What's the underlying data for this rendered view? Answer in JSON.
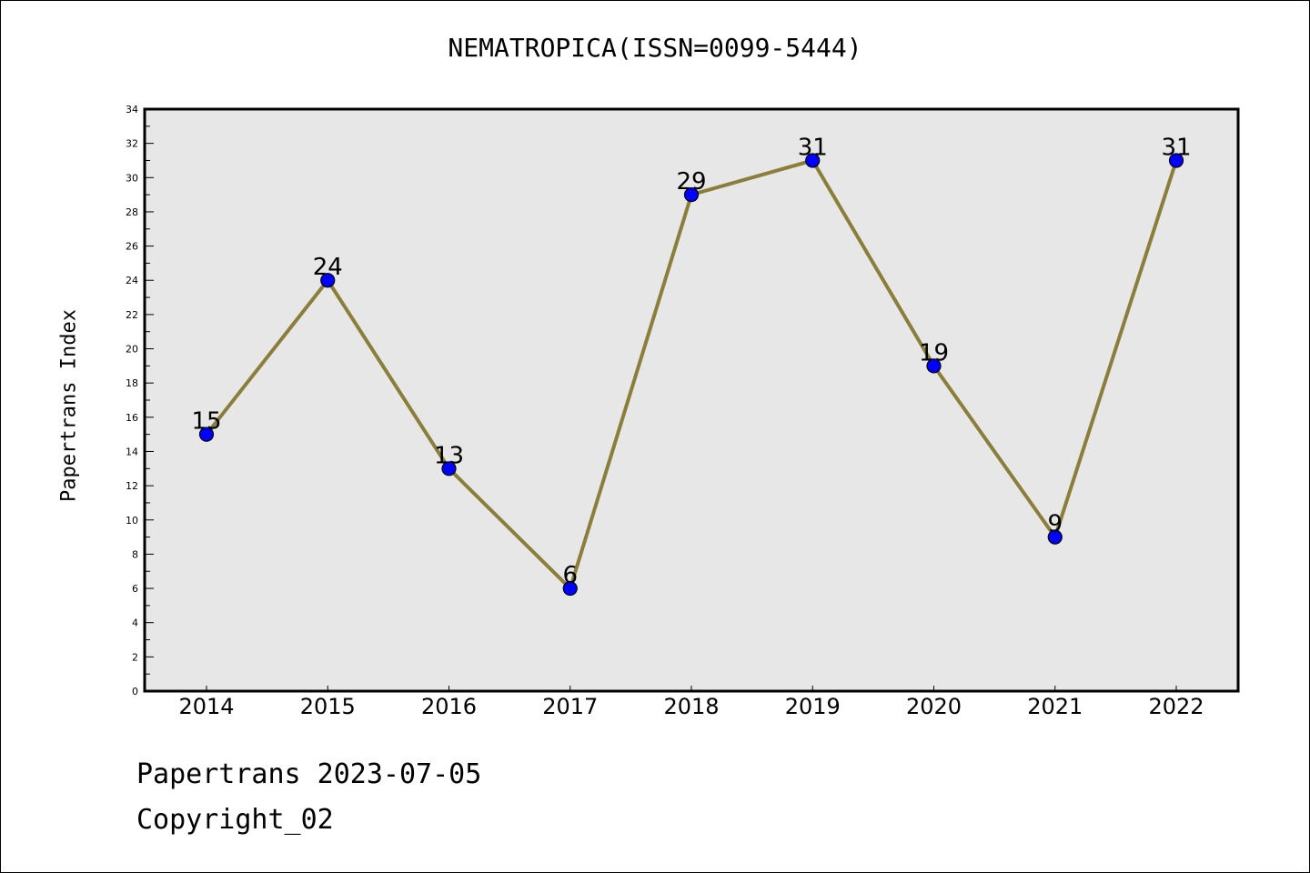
{
  "chart_data": {
    "type": "line",
    "title": "NEMATROPICA(ISSN=0099-5444)",
    "xlabel": "",
    "ylabel": "Papertrans Index",
    "categories": [
      "2014",
      "2015",
      "2016",
      "2017",
      "2018",
      "2019",
      "2020",
      "2021",
      "2022"
    ],
    "series": [
      {
        "values": [
          15,
          24,
          13,
          6,
          29,
          31,
          19,
          9,
          31
        ]
      }
    ],
    "ylim": [
      0,
      34
    ],
    "yticks": [
      0,
      2,
      4,
      6,
      8,
      10,
      12,
      14,
      16,
      18,
      20,
      22,
      24,
      26,
      28,
      30,
      32,
      34
    ],
    "grid": false,
    "legend": "none",
    "data_labels": true,
    "colors": {
      "line": "#8B7D3A",
      "marker": "#0000FF",
      "marker_edge": "#000000",
      "plot_background": "#E7E7E7"
    }
  },
  "footer": {
    "date": "Papertrans 2023-07-05",
    "copyright": "Copyright_02"
  }
}
